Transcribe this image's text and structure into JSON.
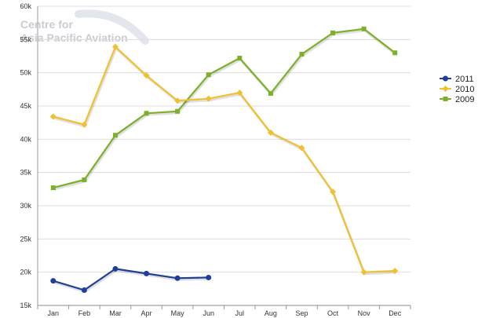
{
  "watermark": {
    "line1": "Centre for",
    "line2": "Asia Pacific Aviation"
  },
  "chart_data": {
    "type": "line",
    "title": "",
    "xlabel": "",
    "ylabel": "",
    "categories": [
      "Jan",
      "Feb",
      "Mar",
      "Apr",
      "May",
      "Jun",
      "Jul",
      "Aug",
      "Sep",
      "Oct",
      "Nov",
      "Dec"
    ],
    "ylim": [
      15000,
      60000
    ],
    "yticks": [
      15000,
      20000,
      25000,
      30000,
      35000,
      40000,
      45000,
      50000,
      55000,
      60000
    ],
    "ytick_labels": [
      "15k",
      "20k",
      "25k",
      "30k",
      "35k",
      "40k",
      "45k",
      "50k",
      "55k",
      "60k"
    ],
    "grid": true,
    "legend_position": "right",
    "series": [
      {
        "name": "2011",
        "color": "#1f3f99",
        "marker": "circle",
        "values": [
          18700,
          17300,
          20500,
          19800,
          19100,
          19200,
          null,
          null,
          null,
          null,
          null,
          null
        ]
      },
      {
        "name": "2010",
        "color": "#f0c030",
        "marker": "diamond",
        "values": [
          43400,
          42200,
          53900,
          49600,
          45800,
          46100,
          47000,
          41000,
          38700,
          32100,
          20000,
          20200
        ]
      },
      {
        "name": "2009",
        "color": "#7caf2a",
        "marker": "square",
        "values": [
          32700,
          33900,
          40600,
          43900,
          44200,
          49700,
          52200,
          46900,
          52800,
          56000,
          56600,
          53000
        ]
      }
    ]
  }
}
